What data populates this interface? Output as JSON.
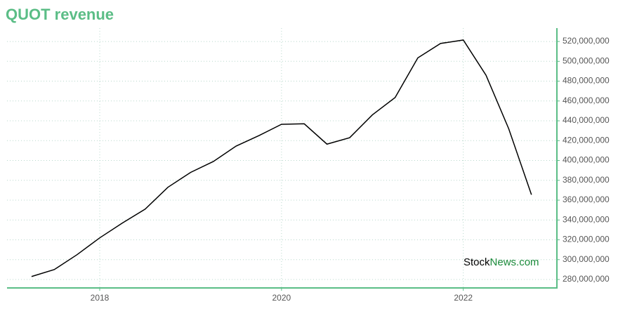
{
  "chart_data": {
    "type": "line",
    "title": "QUOT revenue",
    "x": [
      2017.25,
      2017.5,
      2017.75,
      2018,
      2018.25,
      2018.5,
      2018.75,
      2019,
      2019.25,
      2019.5,
      2019.75,
      2020,
      2020.25,
      2020.5,
      2020.75,
      2021,
      2021.25,
      2021.5,
      2021.75,
      2022,
      2022.25,
      2022.5,
      2022.75
    ],
    "values": [
      283000000,
      290000000,
      305000000,
      322000000,
      337000000,
      351000000,
      373000000,
      388000000,
      399000000,
      414500000,
      425000000,
      436500000,
      437000000,
      416500000,
      423000000,
      446000000,
      463500000,
      503500000,
      518000000,
      521500000,
      486000000,
      432000000,
      365500000
    ],
    "color": "#000000",
    "xlim": [
      2016.98,
      2023.03
    ],
    "xticks": [
      2018,
      2020,
      2022
    ],
    "ylim": [
      271500000,
      533500000
    ],
    "yticks": [
      {
        "value": 280000000,
        "label": "280,000,000"
      },
      {
        "value": 300000000,
        "label": "300,000,000"
      },
      {
        "value": 320000000,
        "label": "320,000,000"
      },
      {
        "value": 340000000,
        "label": "340,000,000"
      },
      {
        "value": 360000000,
        "label": "360,000,000"
      },
      {
        "value": 380000000,
        "label": "380,000,000"
      },
      {
        "value": 400000000,
        "label": "400,000,000"
      },
      {
        "value": 420000000,
        "label": "420,000,000"
      },
      {
        "value": 440000000,
        "label": "440,000,000"
      },
      {
        "value": 460000000,
        "label": "460,000,000"
      },
      {
        "value": 480000000,
        "label": "480,000,000"
      },
      {
        "value": 500000000,
        "label": "500,000,000"
      },
      {
        "value": 520000000,
        "label": "520,000,000"
      }
    ],
    "grid": true,
    "watermark": [
      "Stock",
      "News.com"
    ]
  }
}
